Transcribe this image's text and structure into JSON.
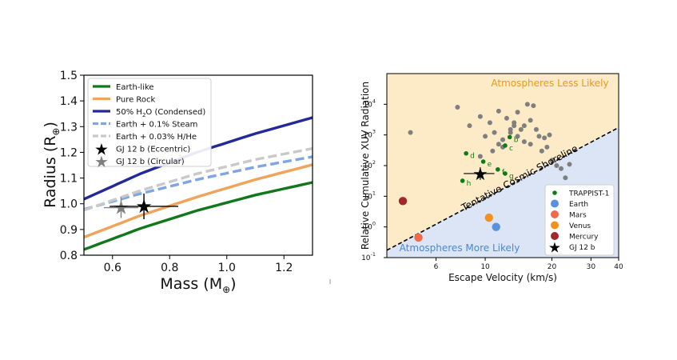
{
  "colors": {
    "earth_like": "#11771b",
    "pure_rock": "#f0a35a",
    "h2o": "#24299a",
    "steam": "#7fa6e4",
    "hhe": "#c9c9c9",
    "star_ecc": "#000000",
    "star_circ": "#808080",
    "bg_upper": "#fcebc6",
    "bg_lower": "#dbe5f6",
    "label_upper": "#e89a18",
    "label_lower": "#4d86cf",
    "trappist": "#0f7a16",
    "gray_pts": "#7f7f7f"
  },
  "chart_data": [
    {
      "type": "line",
      "xlabel": "Mass (M",
      "xlabel_sub": "⊕",
      "xlabel_close": ")",
      "ylabel": "Radius (R",
      "ylabel_sub": "⊕",
      "ylabel_close": ")",
      "xlim": [
        0.5,
        1.3
      ],
      "ylim": [
        0.8,
        1.5
      ],
      "xticks": [
        "0.6",
        "0.8",
        "1.0",
        "1.2"
      ],
      "xtick_vals": [
        0.6,
        0.8,
        1.0,
        1.2
      ],
      "yticks": [
        "0.8",
        "0.9",
        "1.0",
        "1.1",
        "1.2",
        "1.3",
        "1.4",
        "1.5"
      ],
      "ytick_vals": [
        0.8,
        0.9,
        1.0,
        1.1,
        1.2,
        1.3,
        1.4,
        1.5
      ],
      "grid": false,
      "legend_position": "top-left",
      "series": [
        {
          "name": "Earth-like",
          "style": "solid",
          "color_key": "earth_like",
          "x": [
            0.5,
            0.7,
            0.9,
            1.1,
            1.3
          ],
          "y": [
            0.822,
            0.905,
            0.975,
            1.034,
            1.083
          ]
        },
        {
          "name": "Pure Rock",
          "style": "solid",
          "color_key": "pure_rock",
          "x": [
            0.5,
            0.7,
            0.9,
            1.1,
            1.3
          ],
          "y": [
            0.87,
            0.955,
            1.028,
            1.094,
            1.152
          ]
        },
        {
          "name": "50% H",
          "name_sub": "2",
          "name_rest": "O (Condensed)",
          "style": "solid",
          "color_key": "h2o",
          "x": [
            0.5,
            0.7,
            0.9,
            1.1,
            1.3
          ],
          "y": [
            1.018,
            1.118,
            1.202,
            1.273,
            1.335
          ]
        },
        {
          "name": "Earth + 0.1% Steam",
          "style": "dashed",
          "color_key": "steam",
          "x": [
            0.5,
            0.7,
            0.9,
            1.1,
            1.3
          ],
          "y": [
            0.978,
            1.04,
            1.095,
            1.143,
            1.183
          ]
        },
        {
          "name": "Earth + 0.03% H/He",
          "style": "dashed",
          "color_key": "hhe",
          "x": [
            0.5,
            0.7,
            0.9,
            1.1,
            1.3
          ],
          "y": [
            0.975,
            1.052,
            1.118,
            1.172,
            1.215
          ]
        }
      ],
      "points": [
        {
          "name": "GJ 12 b (Eccentric)",
          "color_key": "star_ecc",
          "x": 0.71,
          "y": 0.99,
          "xerr": [
            0.12,
            0.12
          ],
          "yerr": [
            0.05,
            0.05
          ]
        },
        {
          "name": "GJ 12 b (Circular)",
          "color_key": "star_circ",
          "x": 0.63,
          "y": 0.985,
          "xerr": [
            0.06,
            0.06
          ],
          "yerr": [
            0.04,
            0.04
          ]
        }
      ]
    },
    {
      "type": "scatter",
      "xlabel": "Escape Velocity (km/s)",
      "ylabel": "Relative Cumulative XUV Radiation",
      "x_scale": "log",
      "y_scale": "log",
      "xlim": [
        3.6,
        40
      ],
      "ylim": [
        0.1,
        100000
      ],
      "xticks": [
        "6",
        "10",
        "20",
        "30",
        "40"
      ],
      "xtick_vals": [
        6,
        10,
        20,
        30,
        40
      ],
      "yticks": [
        {
          "base": "10",
          "exp": "-1",
          "v": 0.1
        },
        {
          "base": "10",
          "exp": "0",
          "v": 1
        },
        {
          "base": "10",
          "exp": "1",
          "v": 10
        },
        {
          "base": "10",
          "exp": "2",
          "v": 100
        },
        {
          "base": "10",
          "exp": "3",
          "v": 1000
        },
        {
          "base": "10",
          "exp": "4",
          "v": 10000
        }
      ],
      "region_upper_label": "Atmospheres Less Likely",
      "region_lower_label": "Atmospheres More Likely",
      "shoreline_label": "Tentative Cosmic Shoreline",
      "shoreline": {
        "x": [
          3.6,
          40
        ],
        "y": [
          0.1738,
          1740
        ]
      },
      "legend_position": "bottom-right",
      "background_points": [
        [
          4.6,
          1200
        ],
        [
          7.5,
          8000
        ],
        [
          8.5,
          2000
        ],
        [
          9.5,
          4000
        ],
        [
          10.5,
          2500
        ],
        [
          11.5,
          6000
        ],
        [
          12.5,
          3500
        ],
        [
          13.5,
          2500
        ],
        [
          14.5,
          1500
        ],
        [
          15.5,
          10000
        ],
        [
          16.5,
          9000
        ],
        [
          14,
          5500
        ],
        [
          13,
          1500
        ],
        [
          17.5,
          900
        ],
        [
          18,
          300
        ],
        [
          19,
          400
        ],
        [
          15,
          600
        ],
        [
          16,
          3000
        ],
        [
          12,
          700
        ],
        [
          11,
          1200
        ],
        [
          10,
          900
        ],
        [
          9.5,
          200
        ],
        [
          10.8,
          300
        ],
        [
          12,
          400
        ],
        [
          13,
          1200
        ],
        [
          14,
          900
        ],
        [
          15,
          2000
        ],
        [
          16,
          500
        ],
        [
          17,
          1500
        ],
        [
          18.5,
          800
        ],
        [
          20,
          150
        ],
        [
          21,
          100
        ],
        [
          22,
          80
        ],
        [
          23,
          40
        ],
        [
          24,
          110
        ],
        [
          19.5,
          1000
        ],
        [
          11.5,
          500
        ],
        [
          13.5,
          2000
        ]
      ],
      "trappist_points": [
        {
          "label": "b",
          "x": 12.9,
          "y": 850
        },
        {
          "label": "c",
          "x": 12.3,
          "y": 450
        },
        {
          "label": "d",
          "x": 8.2,
          "y": 250
        },
        {
          "label": "e",
          "x": 9.8,
          "y": 135
        },
        {
          "label": "f",
          "x": 11.4,
          "y": 75
        },
        {
          "label": "g",
          "x": 12.3,
          "y": 55
        },
        {
          "label": "h",
          "x": 7.9,
          "y": 32
        }
      ],
      "planets": [
        {
          "name": "Earth",
          "x": 11.2,
          "y": 1.0,
          "color": "#5b8fe0"
        },
        {
          "name": "Mars",
          "x": 5.0,
          "y": 0.45,
          "color": "#ef6a4a"
        },
        {
          "name": "Venus",
          "x": 10.4,
          "y": 2.0,
          "color": "#f2911e"
        },
        {
          "name": "Mercury",
          "x": 4.25,
          "y": 7.0,
          "color": "#a1282a"
        }
      ],
      "gj12b": {
        "name": "GJ 12 b",
        "x": 9.5,
        "y": 55,
        "xerr": [
          1.5,
          1.5
        ],
        "yerr_factor": 1.6
      },
      "legend": [
        "TRAPPIST-1",
        "Earth",
        "Mars",
        "Venus",
        "Mercury",
        "GJ 12 b"
      ]
    }
  ]
}
